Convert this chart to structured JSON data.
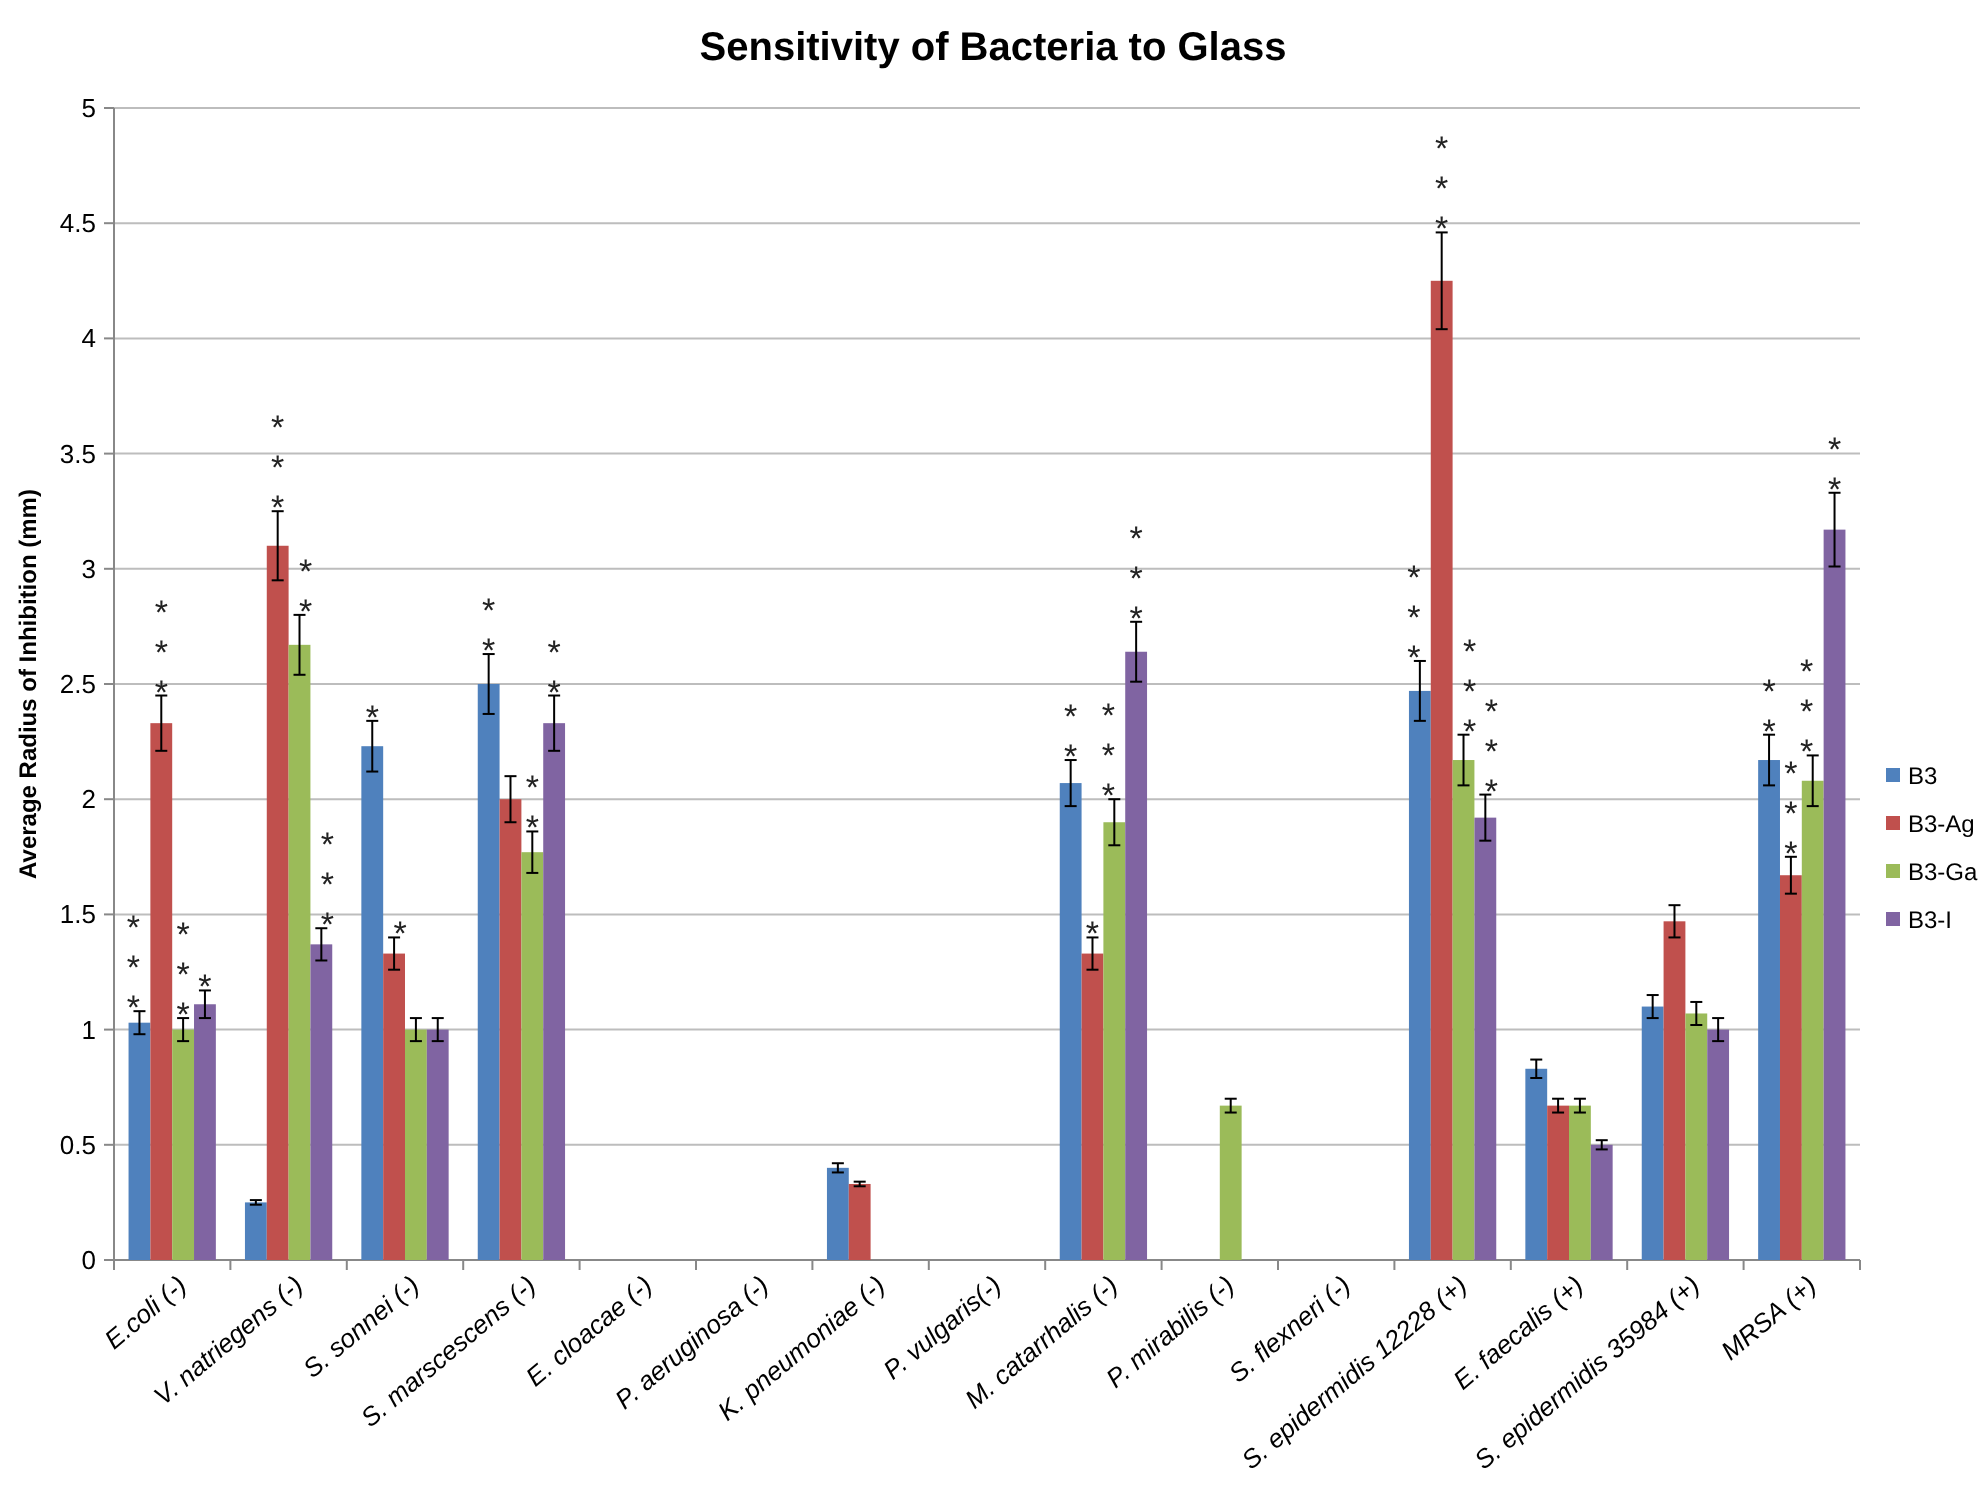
{
  "chart_data": {
    "type": "bar",
    "title": "Sensitivity of Bacteria to Glass",
    "ylabel": "Average Radius of Inhibition (mm)",
    "categories": [
      "E.coli (-)",
      "V. natriegens (-)",
      "S. sonnei (-)",
      "S. marscescens (-)",
      "E. cloacae (-)",
      "P. aeruginosa (-)",
      "K. pneumoniae (-)",
      "P. vulgaris(-)",
      "M. catarrhalis (-)",
      "P. mirabilis (-)",
      "S. flexneri (-)",
      "S. epidermidis 12228 (+)",
      "E. faecalis (+)",
      "S. epidermidis 35984 (+)",
      "MRSA (+)"
    ],
    "series": [
      {
        "name": "B3",
        "color": "#4f81bd",
        "values": [
          1.03,
          0.25,
          2.23,
          2.5,
          null,
          null,
          0.4,
          null,
          2.07,
          null,
          null,
          2.47,
          0.83,
          1.1,
          2.17
        ],
        "errors": [
          0.05,
          0.01,
          0.11,
          0.13,
          null,
          null,
          0.02,
          null,
          0.1,
          null,
          null,
          0.13,
          0.04,
          0.05,
          0.11
        ],
        "value_labels": [
          "***",
          null,
          "*",
          "**",
          null,
          null,
          null,
          null,
          "**",
          null,
          null,
          "***",
          null,
          null,
          "**"
        ]
      },
      {
        "name": "B3-Ag",
        "color": "#c0504d",
        "values": [
          2.33,
          3.1,
          1.33,
          2.0,
          null,
          null,
          0.33,
          null,
          1.33,
          null,
          null,
          4.25,
          0.67,
          1.47,
          1.67
        ],
        "errors": [
          0.12,
          0.15,
          0.07,
          0.1,
          null,
          null,
          0.01,
          null,
          0.07,
          null,
          null,
          0.21,
          0.03,
          0.07,
          0.08
        ],
        "value_labels": [
          "***",
          "***",
          "*",
          null,
          null,
          null,
          null,
          null,
          "*",
          null,
          null,
          "***",
          null,
          null,
          "***"
        ]
      },
      {
        "name": "B3-Ga",
        "color": "#9bbb59",
        "values": [
          1.0,
          2.67,
          1.0,
          1.77,
          null,
          null,
          null,
          null,
          1.9,
          0.67,
          null,
          2.17,
          0.67,
          1.07,
          2.08
        ],
        "errors": [
          0.05,
          0.13,
          0.05,
          0.09,
          null,
          null,
          null,
          null,
          0.1,
          0.03,
          null,
          0.11,
          0.03,
          0.05,
          0.11
        ],
        "value_labels": [
          "***",
          "**",
          null,
          "**",
          null,
          null,
          null,
          null,
          "***",
          null,
          null,
          "***",
          null,
          null,
          "***"
        ]
      },
      {
        "name": "B3-I",
        "color": "#8064a2",
        "values": [
          1.11,
          1.37,
          1.0,
          2.33,
          null,
          null,
          null,
          null,
          2.64,
          null,
          null,
          1.92,
          0.5,
          1.0,
          3.17
        ],
        "errors": [
          0.06,
          0.07,
          0.05,
          0.12,
          null,
          null,
          null,
          null,
          0.13,
          null,
          null,
          0.1,
          0.02,
          0.05,
          0.16
        ],
        "value_labels": [
          "*",
          "***",
          null,
          "**",
          null,
          null,
          null,
          null,
          "***",
          null,
          null,
          "***",
          null,
          null,
          "**"
        ]
      }
    ],
    "ylim": [
      0,
      5
    ],
    "yticks": [
      0,
      0.5,
      1,
      1.5,
      2,
      2.5,
      3,
      3.5,
      4,
      4.5,
      5
    ],
    "grid": "y",
    "legend": "right"
  }
}
